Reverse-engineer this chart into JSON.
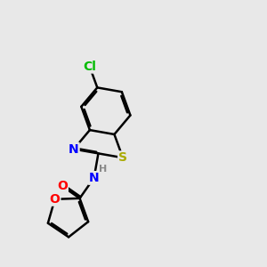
{
  "bg_color": "#e8e8e8",
  "bond_color": "#000000",
  "bond_width": 1.8,
  "atom_colors": {
    "Cl": "#00bb00",
    "N": "#0000ff",
    "O": "#ff0000",
    "S": "#aaaa00",
    "H": "#888888",
    "C": "#000000"
  },
  "font_size": 10,
  "fig_size": [
    3.0,
    3.0
  ],
  "dpi": 100
}
